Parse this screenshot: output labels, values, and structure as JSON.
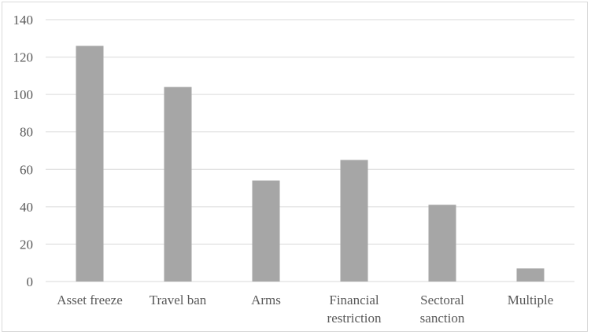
{
  "chart_data": {
    "type": "bar",
    "title": "",
    "xlabel": "",
    "ylabel": "",
    "categories": [
      [
        "Asset freeze"
      ],
      [
        "Travel ban"
      ],
      [
        "Arms"
      ],
      [
        "Financial",
        "restriction"
      ],
      [
        "Sectoral",
        "sanction"
      ],
      [
        "Multiple"
      ]
    ],
    "values": [
      126,
      104,
      54,
      65,
      41,
      7
    ],
    "ylim": [
      0,
      140
    ],
    "yticks": [
      0,
      20,
      40,
      60,
      80,
      100,
      120,
      140
    ],
    "grid": true,
    "legend": "none",
    "colors": {
      "bar": "#a6a6a6",
      "grid": "#d9d9d9",
      "text": "#595959"
    }
  }
}
